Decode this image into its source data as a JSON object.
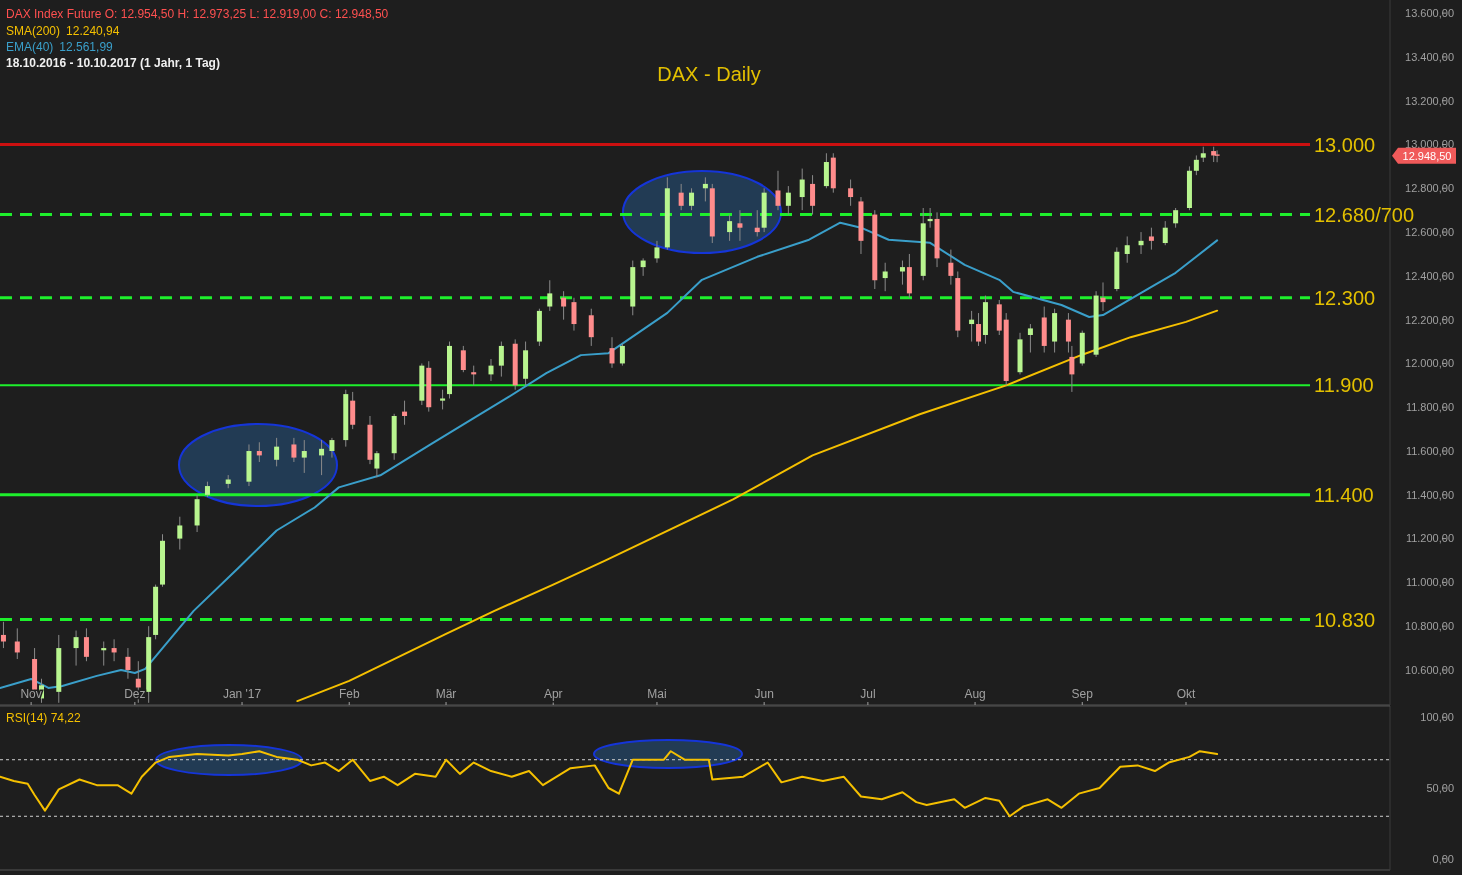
{
  "chart_data": [
    {
      "type": "candlestick",
      "title": "DAX - Daily",
      "legend": "top left",
      "annotations": [
        "DAX Index Future  O: 12.954,50  H: 12.973,25  L: 12.919,00  C: 12.948,50",
        "12.240,94",
        "12.561,99",
        "18.10.2016 - 10.10.2017  (1 Jahr, 1 Tag)",
        "12.948,50"
      ],
      "xlim": [
        "2016-10-23",
        "2017-11-29"
      ],
      "xticks": [
        {
          "value": "2016-11-01",
          "label": "Nov"
        },
        {
          "value": "2016-12-01",
          "label": "Dez"
        },
        {
          "value": "2017-01-01",
          "label": "Jan '17"
        },
        {
          "value": "2017-02-01",
          "label": "Feb"
        },
        {
          "value": "2017-03-01",
          "label": "Mär"
        },
        {
          "value": "2017-04-01",
          "label": "Apr"
        },
        {
          "value": "2017-05-01",
          "label": "Mai"
        },
        {
          "value": "2017-06-01",
          "label": "Jun"
        },
        {
          "value": "2017-07-01",
          "label": "Jul"
        },
        {
          "value": "2017-08-01",
          "label": "Aug"
        },
        {
          "value": "2017-09-01",
          "label": "Sep"
        },
        {
          "value": "2017-10-01",
          "label": "Okt"
        }
      ],
      "ylim": [
        10440,
        13660
      ],
      "yticks": [
        {
          "value": 10600,
          "label": "10.600,00"
        },
        {
          "value": 10800,
          "label": "10.800,00"
        },
        {
          "value": 11000,
          "label": "11.000,00"
        },
        {
          "value": 11200,
          "label": "11.200,00"
        },
        {
          "value": 11400,
          "label": "11.400,00"
        },
        {
          "value": 11600,
          "label": "11.600,00"
        },
        {
          "value": 11800,
          "label": "11.800,00"
        },
        {
          "value": 12000,
          "label": "12.000,00"
        },
        {
          "value": 12200,
          "label": "12.200,00"
        },
        {
          "value": 12400,
          "label": "12.400,00"
        },
        {
          "value": 12600,
          "label": "12.600,00"
        },
        {
          "value": 12800,
          "label": "12.800,00"
        },
        {
          "value": 13000,
          "label": "13.000,00"
        },
        {
          "value": 13200,
          "label": "13.200,00"
        },
        {
          "value": 13400,
          "label": "13.400,00"
        },
        {
          "value": 13600,
          "label": "13.600,00"
        }
      ],
      "x": [
        "2016-10-24",
        "2016-10-28",
        "2016-11-02",
        "2016-11-04",
        "2016-11-09",
        "2016-11-14",
        "2016-11-17",
        "2016-11-22",
        "2016-11-25",
        "2016-11-29",
        "2016-12-02",
        "2016-12-05",
        "2016-12-07",
        "2016-12-09",
        "2016-12-14",
        "2016-12-19",
        "2016-12-22",
        "2016-12-28",
        "2017-01-03",
        "2017-01-06",
        "2017-01-11",
        "2017-01-16",
        "2017-01-19",
        "2017-01-24",
        "2017-01-27",
        "2017-01-31",
        "2017-02-02",
        "2017-02-07",
        "2017-02-09",
        "2017-02-14",
        "2017-02-17",
        "2017-02-22",
        "2017-02-24",
        "2017-02-28",
        "2017-03-02",
        "2017-03-06",
        "2017-03-09",
        "2017-03-14",
        "2017-03-17",
        "2017-03-21",
        "2017-03-24",
        "2017-03-28",
        "2017-03-31",
        "2017-04-04",
        "2017-04-07",
        "2017-04-12",
        "2017-04-18",
        "2017-04-21",
        "2017-04-24",
        "2017-04-27",
        "2017-05-01",
        "2017-05-04",
        "2017-05-08",
        "2017-05-11",
        "2017-05-15",
        "2017-05-17",
        "2017-05-22",
        "2017-05-25",
        "2017-05-30",
        "2017-06-01",
        "2017-06-05",
        "2017-06-08",
        "2017-06-12",
        "2017-06-15",
        "2017-06-19",
        "2017-06-21",
        "2017-06-26",
        "2017-06-29",
        "2017-07-03",
        "2017-07-06",
        "2017-07-11",
        "2017-07-13",
        "2017-07-17",
        "2017-07-19",
        "2017-07-21",
        "2017-07-25",
        "2017-07-27",
        "2017-07-31",
        "2017-08-02",
        "2017-08-04",
        "2017-08-08",
        "2017-08-10",
        "2017-08-14",
        "2017-08-17",
        "2017-08-21",
        "2017-08-24",
        "2017-08-28",
        "2017-08-29",
        "2017-09-01",
        "2017-09-05",
        "2017-09-07",
        "2017-09-11",
        "2017-09-14",
        "2017-09-18",
        "2017-09-21",
        "2017-09-25",
        "2017-09-28",
        "2017-10-02",
        "2017-10-04",
        "2017-10-06",
        "2017-10-09",
        "2017-10-10"
      ],
      "ohlc": [
        [
          10760,
          10820,
          10700,
          10730
        ],
        [
          10730,
          10790,
          10650,
          10680
        ],
        [
          10650,
          10700,
          10480,
          10490
        ],
        [
          10470,
          10560,
          10450,
          10530
        ],
        [
          10500,
          10760,
          10450,
          10700
        ],
        [
          10700,
          10780,
          10620,
          10750
        ],
        [
          10750,
          10790,
          10640,
          10660
        ],
        [
          10690,
          10730,
          10620,
          10700
        ],
        [
          10700,
          10740,
          10640,
          10680
        ],
        [
          10660,
          10700,
          10560,
          10600
        ],
        [
          10560,
          10640,
          10450,
          10520
        ],
        [
          10500,
          10800,
          10450,
          10750
        ],
        [
          10760,
          10990,
          10740,
          10980
        ],
        [
          10990,
          11220,
          10980,
          11190
        ],
        [
          11200,
          11300,
          11150,
          11260
        ],
        [
          11260,
          11400,
          11230,
          11380
        ],
        [
          11400,
          11460,
          11390,
          11440
        ],
        [
          11450,
          11490,
          11430,
          11470
        ],
        [
          11460,
          11630,
          11440,
          11600
        ],
        [
          11600,
          11640,
          11550,
          11580
        ],
        [
          11560,
          11660,
          11530,
          11620
        ],
        [
          11630,
          11660,
          11550,
          11570
        ],
        [
          11570,
          11650,
          11500,
          11600
        ],
        [
          11580,
          11650,
          11490,
          11610
        ],
        [
          11600,
          11660,
          11570,
          11650
        ],
        [
          11650,
          11880,
          11620,
          11860
        ],
        [
          11830,
          11870,
          11700,
          11720
        ],
        [
          11720,
          11760,
          11540,
          11560
        ],
        [
          11520,
          11600,
          11480,
          11590
        ],
        [
          11590,
          11770,
          11560,
          11760
        ],
        [
          11780,
          11830,
          11720,
          11760
        ],
        [
          11830,
          12000,
          11810,
          11990
        ],
        [
          11980,
          12010,
          11780,
          11800
        ],
        [
          11830,
          11880,
          11790,
          11840
        ],
        [
          11860,
          12100,
          11840,
          12080
        ],
        [
          12060,
          12080,
          11960,
          11970
        ],
        [
          11960,
          11990,
          11900,
          11950
        ],
        [
          11950,
          12020,
          11920,
          11990
        ],
        [
          11990,
          12100,
          11940,
          12080
        ],
        [
          12090,
          12110,
          11880,
          11900
        ],
        [
          11930,
          12100,
          11900,
          12060
        ],
        [
          12100,
          12250,
          12080,
          12240
        ],
        [
          12260,
          12380,
          12240,
          12320
        ],
        [
          12300,
          12330,
          12200,
          12260
        ],
        [
          12280,
          12300,
          12150,
          12180
        ],
        [
          12220,
          12250,
          12080,
          12120
        ],
        [
          12070,
          12120,
          11980,
          12000
        ],
        [
          12000,
          12090,
          11990,
          12080
        ],
        [
          12260,
          12470,
          12220,
          12440
        ],
        [
          12440,
          12480,
          12400,
          12470
        ],
        [
          12480,
          12560,
          12460,
          12530
        ],
        [
          12530,
          12850,
          12520,
          12800
        ],
        [
          12780,
          12820,
          12700,
          12720
        ],
        [
          12720,
          12800,
          12700,
          12780
        ],
        [
          12800,
          12850,
          12740,
          12820
        ],
        [
          12800,
          12820,
          12550,
          12580
        ],
        [
          12600,
          12680,
          12560,
          12650
        ],
        [
          12640,
          12700,
          12560,
          12620
        ],
        [
          12620,
          12700,
          12580,
          12600
        ],
        [
          12620,
          12800,
          12600,
          12780
        ],
        [
          12790,
          12880,
          12700,
          12720
        ],
        [
          12720,
          12810,
          12680,
          12780
        ],
        [
          12760,
          12890,
          12700,
          12840
        ],
        [
          12820,
          12860,
          12680,
          12720
        ],
        [
          12810,
          12960,
          12800,
          12920
        ],
        [
          12940,
          12960,
          12780,
          12800
        ],
        [
          12800,
          12840,
          12720,
          12760
        ],
        [
          12740,
          12760,
          12500,
          12560
        ],
        [
          12680,
          12700,
          12340,
          12380
        ],
        [
          12390,
          12460,
          12330,
          12420
        ],
        [
          12420,
          12470,
          12360,
          12440
        ],
        [
          12440,
          12500,
          12300,
          12320
        ],
        [
          12400,
          12710,
          12380,
          12640
        ],
        [
          12650,
          12710,
          12620,
          12660
        ],
        [
          12660,
          12690,
          12440,
          12480
        ],
        [
          12460,
          12520,
          12360,
          12400
        ],
        [
          12390,
          12420,
          12120,
          12150
        ],
        [
          12180,
          12240,
          12100,
          12200
        ],
        [
          12180,
          12230,
          12080,
          12100
        ],
        [
          12130,
          12310,
          12090,
          12280
        ],
        [
          12270,
          12290,
          12130,
          12150
        ],
        [
          12200,
          12230,
          11900,
          11920
        ],
        [
          11960,
          12140,
          11950,
          12110
        ],
        [
          12130,
          12180,
          12050,
          12160
        ],
        [
          12210,
          12260,
          12050,
          12080
        ],
        [
          12100,
          12250,
          12050,
          12230
        ],
        [
          12200,
          12230,
          12050,
          12100
        ],
        [
          12030,
          12080,
          11870,
          11950
        ],
        [
          12000,
          12150,
          11990,
          12140
        ],
        [
          12040,
          12330,
          12030,
          12310
        ],
        [
          12300,
          12370,
          12240,
          12280
        ],
        [
          12340,
          12530,
          12330,
          12510
        ],
        [
          12500,
          12580,
          12460,
          12540
        ],
        [
          12540,
          12600,
          12500,
          12560
        ],
        [
          12580,
          12620,
          12520,
          12560
        ],
        [
          12550,
          12650,
          12540,
          12620
        ],
        [
          12640,
          12710,
          12620,
          12700
        ],
        [
          12710,
          12900,
          12700,
          12880
        ],
        [
          12880,
          12950,
          12860,
          12930
        ],
        [
          12940,
          12990,
          12920,
          12960
        ],
        [
          12970,
          12990,
          12920,
          12950
        ],
        [
          12954.5,
          12973.25,
          12919,
          12948.5
        ]
      ],
      "colors": [
        "#ff8c8c",
        "#ff8c8c",
        "#ff8c8c",
        "#b8f58f",
        "#b8f58f",
        "#b8f58f",
        "#ff8c8c",
        "#b8f58f",
        "#ff8c8c",
        "#ff8c8c",
        "#ff8c8c",
        "#b8f58f",
        "#b8f58f",
        "#b8f58f",
        "#b8f58f",
        "#b8f58f",
        "#b8f58f",
        "#b8f58f",
        "#b8f58f",
        "#ff8c8c",
        "#b8f58f",
        "#ff8c8c",
        "#b8f58f",
        "#b8f58f",
        "#b8f58f",
        "#b8f58f",
        "#ff8c8c",
        "#ff8c8c",
        "#b8f58f",
        "#b8f58f",
        "#ff8c8c",
        "#b8f58f",
        "#ff8c8c",
        "#b8f58f",
        "#b8f58f",
        "#ff8c8c",
        "#ff8c8c",
        "#b8f58f",
        "#b8f58f",
        "#ff8c8c",
        "#b8f58f",
        "#b8f58f",
        "#b8f58f",
        "#ff8c8c",
        "#ff8c8c",
        "#ff8c8c",
        "#ff8c8c",
        "#b8f58f",
        "#b8f58f",
        "#b8f58f",
        "#b8f58f",
        "#b8f58f",
        "#ff8c8c",
        "#b8f58f",
        "#b8f58f",
        "#ff8c8c",
        "#b8f58f",
        "#ff8c8c",
        "#ff8c8c",
        "#b8f58f",
        "#ff8c8c",
        "#b8f58f",
        "#b8f58f",
        "#ff8c8c",
        "#b8f58f",
        "#ff8c8c",
        "#ff8c8c",
        "#ff8c8c",
        "#ff8c8c",
        "#b8f58f",
        "#b8f58f",
        "#ff8c8c",
        "#b8f58f",
        "#b8f58f",
        "#ff8c8c",
        "#ff8c8c",
        "#ff8c8c",
        "#b8f58f",
        "#ff8c8c",
        "#b8f58f",
        "#ff8c8c",
        "#ff8c8c",
        "#b8f58f",
        "#b8f58f",
        "#ff8c8c",
        "#b8f58f",
        "#ff8c8c",
        "#ff8c8c",
        "#b8f58f",
        "#b8f58f",
        "#ff8c8c",
        "#b8f58f",
        "#b8f58f",
        "#b8f58f",
        "#ff8c8c",
        "#b8f58f",
        "#b8f58f",
        "#b8f58f",
        "#b8f58f",
        "#b8f58f",
        "#ff8c8c",
        "#ff8c8c"
      ],
      "series": [
        {
          "type": "line",
          "name": "SMA(200)",
          "color": "#f5c000",
          "x": [
            "2017-01-17",
            "2017-02-01",
            "2017-03-01",
            "2017-03-15",
            "2017-04-01",
            "2017-04-16",
            "2017-05-23",
            "2017-06-15",
            "2017-07-16",
            "2017-08-10",
            "2017-09-01",
            "2017-09-15",
            "2017-10-01",
            "2017-10-10"
          ],
          "values": [
            10458,
            10550,
            10765,
            10870,
            10990,
            11099,
            11379,
            11580,
            11768,
            11900,
            12040,
            12120,
            12190,
            12241
          ]
        },
        {
          "type": "line",
          "name": "EMA(40)",
          "color": "#3a9fca",
          "x": [
            "2016-10-23",
            "2016-11-01",
            "2016-11-06",
            "2016-11-10",
            "2016-11-20",
            "2016-11-27",
            "2016-12-01",
            "2016-12-04",
            "2016-12-18",
            "2016-12-31",
            "2017-01-11",
            "2017-01-22",
            "2017-01-29",
            "2017-02-10",
            "2017-02-25",
            "2017-03-09",
            "2017-03-19",
            "2017-03-30",
            "2017-04-09",
            "2017-04-17",
            "2017-05-04",
            "2017-05-14",
            "2017-05-30",
            "2017-06-14",
            "2017-06-23",
            "2017-06-29",
            "2017-07-07",
            "2017-07-19",
            "2017-07-29",
            "2017-08-08",
            "2017-08-12",
            "2017-08-26",
            "2017-09-03",
            "2017-09-07",
            "2017-09-21",
            "2017-09-28",
            "2017-10-10"
          ],
          "values": [
            10518,
            10559,
            10518,
            10527,
            10573,
            10600,
            10586,
            10605,
            10870,
            11067,
            11237,
            11342,
            11434,
            11489,
            11635,
            11750,
            11846,
            11956,
            12038,
            12047,
            12231,
            12382,
            12487,
            12565,
            12643,
            12620,
            12565,
            12551,
            12450,
            12382,
            12327,
            12267,
            12212,
            12221,
            12350,
            12414,
            12562
          ]
        }
      ],
      "ref_lines": [
        {
          "axis": "y",
          "value": 13000,
          "label": "13.000",
          "color": "#cc1010",
          "line_style": "solid"
        },
        {
          "axis": "y",
          "value": 12680,
          "label": "12.680/700",
          "color": "#1ef02c",
          "line_style": "dashed"
        },
        {
          "axis": "y",
          "value": 12300,
          "label": "12.300",
          "color": "#1ef02c",
          "line_style": "dashed"
        },
        {
          "axis": "y",
          "value": 11900,
          "label": "11.900",
          "color": "#1ef02c",
          "line_style": "solid"
        },
        {
          "axis": "y",
          "value": 11400,
          "label": "11.400",
          "color": "#1ef02c",
          "line_style": "solid"
        },
        {
          "axis": "y",
          "value": 10830,
          "label": "10.830",
          "color": "#1ef02c",
          "line_style": "dashed"
        }
      ]
    },
    {
      "type": "line",
      "title": "RSI(14)  74,22",
      "tick_labels": "y",
      "xlim": [
        "2016-10-23",
        "2017-11-29"
      ],
      "ylim": [
        -8,
        108
      ],
      "yticks": [
        {
          "value": 0,
          "label": "0,00"
        },
        {
          "value": 50,
          "label": "50,00"
        },
        {
          "value": 100,
          "label": "100,00"
        }
      ],
      "x": [
        "2016-10-23",
        "2016-10-27",
        "2016-10-31",
        "2016-11-02",
        "2016-11-05",
        "2016-11-09",
        "2016-11-15",
        "2016-11-20",
        "2016-11-26",
        "2016-11-30",
        "2016-12-03",
        "2016-12-07",
        "2016-12-11",
        "2016-12-19",
        "2016-12-28",
        "2017-01-01",
        "2017-01-06",
        "2017-01-11",
        "2017-01-17",
        "2017-01-21",
        "2017-01-25",
        "2017-01-29",
        "2017-02-02",
        "2017-02-07",
        "2017-02-11",
        "2017-02-15",
        "2017-02-20",
        "2017-02-26",
        "2017-03-01",
        "2017-03-05",
        "2017-03-09",
        "2017-03-14",
        "2017-03-20",
        "2017-03-25",
        "2017-03-29",
        "2017-04-06",
        "2017-04-13",
        "2017-04-17",
        "2017-04-20",
        "2017-04-24",
        "2017-05-03",
        "2017-05-05",
        "2017-05-09",
        "2017-05-16",
        "2017-05-17",
        "2017-05-26",
        "2017-06-02",
        "2017-06-06",
        "2017-06-12",
        "2017-06-18",
        "2017-06-24",
        "2017-06-29",
        "2017-07-05",
        "2017-07-11",
        "2017-07-15",
        "2017-07-18",
        "2017-07-26",
        "2017-07-29",
        "2017-08-04",
        "2017-08-08",
        "2017-08-11",
        "2017-08-15",
        "2017-08-22",
        "2017-08-26",
        "2017-08-31",
        "2017-09-06",
        "2017-09-12",
        "2017-09-17",
        "2017-09-22",
        "2017-09-26",
        "2017-10-02",
        "2017-10-05",
        "2017-10-10"
      ],
      "series": [
        {
          "color": "#f5c000",
          "values": [
            58,
            55,
            53,
            45,
            34,
            49,
            56,
            52,
            52,
            46,
            58,
            68,
            72,
            74,
            73,
            74,
            76,
            72,
            70,
            66,
            68,
            62,
            70,
            55,
            58,
            52,
            60,
            58,
            70,
            60,
            68,
            62,
            58,
            62,
            52,
            64,
            66,
            50,
            46,
            70,
            70,
            76,
            70,
            70,
            56,
            58,
            68,
            54,
            58,
            55,
            58,
            44,
            42,
            47,
            40,
            38,
            42,
            36,
            43,
            41,
            30,
            37,
            42,
            36,
            46,
            50,
            65,
            66,
            62,
            68,
            72,
            76,
            74
          ]
        }
      ],
      "ref_lines": [
        {
          "axis": "y",
          "value": 70,
          "color": "#cfcfcf",
          "line_style": "dashed"
        },
        {
          "axis": "y",
          "value": 30,
          "color": "#cfcfcf",
          "line_style": "dashed"
        }
      ]
    }
  ]
}
